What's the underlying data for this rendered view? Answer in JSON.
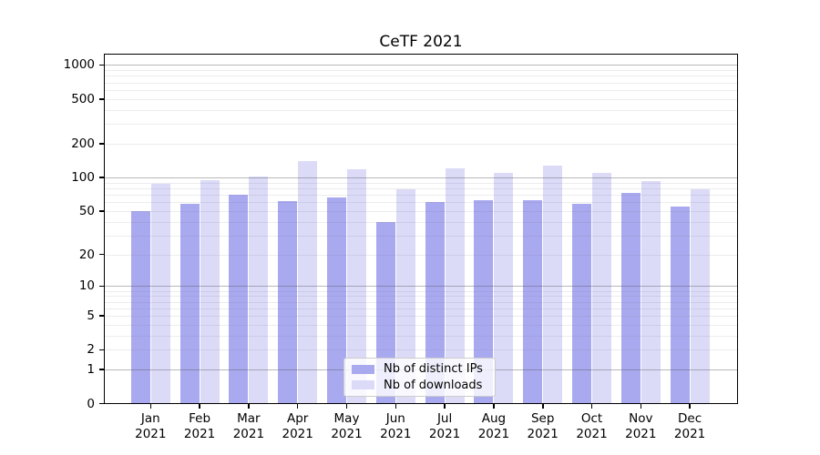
{
  "figure": {
    "title": "CeTF 2021"
  },
  "colors": {
    "bar_distinct_ips": "#a9a9f0",
    "bar_downloads": "#dbdbf8",
    "grid_major": "#ababab",
    "grid_minor": "#e9e9ee",
    "frame": "#000000",
    "background": "#ffffff"
  },
  "chart_data": {
    "type": "bar",
    "title": "CeTF 2021",
    "categories": [
      "Jan",
      "Feb",
      "Mar",
      "Apr",
      "May",
      "Jun",
      "Jul",
      "Aug",
      "Sep",
      "Oct",
      "Nov",
      "Dec"
    ],
    "x_tick_second_line": "2021",
    "series": [
      {
        "name": "Nb of distinct IPs",
        "color": "#a9a9f0",
        "values": [
          50,
          58,
          70,
          61,
          66,
          40,
          60,
          62,
          63,
          58,
          72,
          55
        ]
      },
      {
        "name": "Nb of downloads",
        "color": "#dbdbf8",
        "values": [
          88,
          95,
          102,
          140,
          118,
          78,
          121,
          110,
          128,
          110,
          92,
          78
        ]
      }
    ],
    "xlabel": "",
    "ylabel": "",
    "y_axis": {
      "scale": "log10(1+x)",
      "range": [
        0,
        1000
      ],
      "tick_values": [
        0,
        1,
        2,
        5,
        10,
        20,
        50,
        100,
        200,
        500,
        1000
      ],
      "tick_labels": [
        "0",
        "1",
        "2",
        "5",
        "10",
        "20",
        "50",
        "100",
        "200",
        "500",
        "1000"
      ],
      "major_gridlines": [
        1,
        10,
        100,
        1000
      ],
      "minor_gridlines": [
        2,
        3,
        4,
        5,
        6,
        7,
        8,
        9,
        20,
        30,
        40,
        50,
        60,
        70,
        80,
        90,
        200,
        300,
        400,
        500,
        600,
        700,
        800,
        900
      ]
    },
    "grid": true,
    "legend_position": "bottom-center"
  }
}
